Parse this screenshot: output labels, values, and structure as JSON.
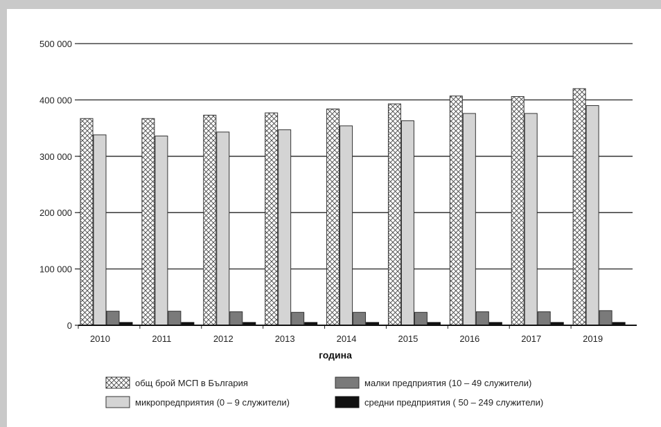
{
  "chart_data": {
    "type": "bar",
    "categories": [
      "2010",
      "2011",
      "2012",
      "2013",
      "2014",
      "2015",
      "2016",
      "2017",
      "2019"
    ],
    "series": [
      {
        "name": "общ брой МСП в България",
        "values": [
          367000,
          367000,
          373000,
          377000,
          384000,
          393000,
          407000,
          406000,
          420000
        ]
      },
      {
        "name": "микропредприятия (0 – 9 служители)",
        "values": [
          338000,
          336000,
          343000,
          347000,
          354000,
          363000,
          376000,
          376000,
          390000
        ]
      },
      {
        "name": "малки предприятия (10 – 49 служители)",
        "values": [
          25000,
          25000,
          24000,
          23000,
          23000,
          23000,
          24000,
          24000,
          26000
        ]
      },
      {
        "name": "средни предприятия ( 50 – 249 служители)",
        "values": [
          5000,
          5000,
          5000,
          5000,
          5000,
          5000,
          5000,
          5000,
          5000
        ]
      }
    ],
    "xlabel": "година",
    "ylabel": "",
    "ylim": [
      0,
      500000
    ],
    "yticks": [
      0,
      100000,
      200000,
      300000,
      400000,
      500000
    ],
    "ytick_labels": [
      "0",
      "100 000",
      "200 000",
      "300 000",
      "400 000",
      "500 000"
    ],
    "grid": true,
    "legend": "bottom",
    "colors": {
      "total": "#ffffff",
      "micro": "#d4d4d4",
      "small": "#7a7a7a",
      "medium": "#111111",
      "frame": "#c9c9c9",
      "grid": "#222222"
    },
    "patterns": {
      "total": "crosshatch"
    }
  }
}
